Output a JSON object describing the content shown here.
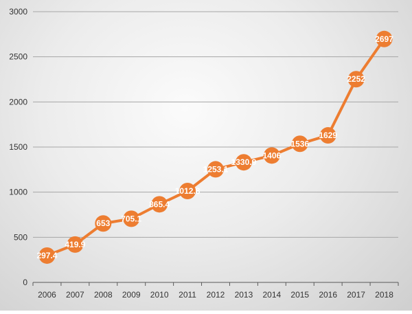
{
  "chart_data": {
    "type": "line",
    "title": "",
    "xlabel": "",
    "ylabel": "",
    "categories": [
      "2006",
      "2007",
      "2008",
      "2009",
      "2010",
      "2011",
      "2012",
      "2013",
      "2014",
      "2015",
      "2016",
      "2017",
      "2018"
    ],
    "values": [
      297.4,
      419.9,
      653,
      705.1,
      865.4,
      1012.8,
      1253.1,
      1330.9,
      1406,
      1536,
      1629,
      2252,
      2697
    ],
    "data_labels": [
      "297.4",
      "419.9",
      "653",
      "705.1",
      "865.4",
      "1012.8",
      "1253.1",
      "1330.9",
      "1406",
      "1536",
      "1629",
      "2252",
      "2697"
    ],
    "ylim": [
      0,
      3000
    ],
    "yticks": [
      "0",
      "500",
      "1000",
      "1500",
      "2000",
      "2500",
      "3000"
    ],
    "grid": true,
    "legend": "none",
    "colors": {
      "series": "#ED7D31",
      "grid": "#a6a6a6",
      "label": "#ffffff"
    }
  }
}
